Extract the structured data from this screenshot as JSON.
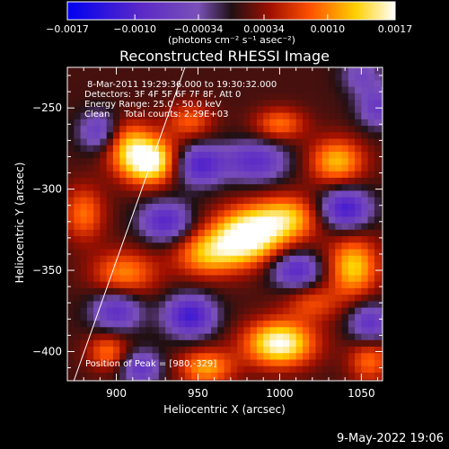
{
  "chart_data": {
    "type": "heatmap",
    "title": "Reconstructed RHESSI Image",
    "xlabel": "Heliocentric X (arcsec)",
    "ylabel": "Heliocentric Y (arcsec)",
    "xlim": [
      870,
      1063
    ],
    "ylim": [
      -418,
      -225
    ],
    "xticks": [
      900,
      950,
      1000,
      1050
    ],
    "yticks": [
      -250,
      -300,
      -350,
      -400
    ],
    "colorbar": {
      "ticks": [
        "-0.0017",
        "-0.0010",
        "-0.00034",
        "0.00034",
        "0.0010",
        "0.0017"
      ],
      "range": [
        -0.0017,
        0.0017
      ],
      "unit_label": "(photons cm⁻² s⁻¹ asec⁻²)"
    },
    "annotations": [
      "8-Mar-2011 19:29:36.000 to 19:30:32.000",
      "Detectors: 3F 4F 5F 6F 7F 8F, Att 0",
      "Energy Range: 25.0 - 50.0 keV",
      "Clean     Total counts: 2.29E+03"
    ],
    "peak_label": "Position of Peak = [980,-329]",
    "peak": {
      "x": 980,
      "y": -329
    },
    "limb": [
      [
        874,
        -418
      ],
      [
        942,
        -225
      ]
    ],
    "sources": [
      {
        "x": 920,
        "y": -283,
        "amp": 0.0017,
        "sx": 13,
        "sy": 10
      },
      {
        "x": 905,
        "y": -270,
        "amp": 0.0008,
        "sx": 12,
        "sy": 10
      },
      {
        "x": 945,
        "y": -258,
        "amp": 0.0007,
        "sx": 10,
        "sy": 8
      },
      {
        "x": 980,
        "y": -329,
        "amp": 0.0017,
        "sx": 15,
        "sy": 12
      },
      {
        "x": 955,
        "y": -340,
        "amp": 0.001,
        "sx": 14,
        "sy": 10
      },
      {
        "x": 1005,
        "y": -318,
        "amp": 0.0011,
        "sx": 14,
        "sy": 10
      },
      {
        "x": 1035,
        "y": -283,
        "amp": 0.0011,
        "sx": 12,
        "sy": 10
      },
      {
        "x": 1000,
        "y": -260,
        "amp": 0.0008,
        "sx": 11,
        "sy": 7
      },
      {
        "x": 880,
        "y": -315,
        "amp": 0.0008,
        "sx": 9,
        "sy": 12
      },
      {
        "x": 905,
        "y": -352,
        "amp": 0.0009,
        "sx": 14,
        "sy": 10
      },
      {
        "x": 1045,
        "y": -348,
        "amp": 0.0012,
        "sx": 11,
        "sy": 13
      },
      {
        "x": 1000,
        "y": -395,
        "amp": 0.0016,
        "sx": 15,
        "sy": 10
      },
      {
        "x": 955,
        "y": -410,
        "amp": 0.001,
        "sx": 12,
        "sy": 8
      },
      {
        "x": 895,
        "y": -400,
        "amp": 0.0008,
        "sx": 9,
        "sy": 8
      },
      {
        "x": 1055,
        "y": -405,
        "amp": 0.0008,
        "sx": 9,
        "sy": 10
      },
      {
        "x": 1020,
        "y": -370,
        "amp": 0.0006,
        "sx": 12,
        "sy": 8
      },
      {
        "x": 890,
        "y": -265,
        "amp": -0.001,
        "sx": 9,
        "sy": 9
      },
      {
        "x": 950,
        "y": -285,
        "amp": -0.0012,
        "sx": 11,
        "sy": 9
      },
      {
        "x": 985,
        "y": -283,
        "amp": -0.001,
        "sx": 14,
        "sy": 9
      },
      {
        "x": 930,
        "y": -320,
        "amp": -0.0011,
        "sx": 11,
        "sy": 9
      },
      {
        "x": 1040,
        "y": -312,
        "amp": -0.0013,
        "sx": 11,
        "sy": 9
      },
      {
        "x": 900,
        "y": -375,
        "amp": -0.001,
        "sx": 11,
        "sy": 9
      },
      {
        "x": 945,
        "y": -378,
        "amp": -0.0013,
        "sx": 11,
        "sy": 9
      },
      {
        "x": 1010,
        "y": -350,
        "amp": -0.0011,
        "sx": 11,
        "sy": 8
      },
      {
        "x": 1055,
        "y": -383,
        "amp": -0.001,
        "sx": 9,
        "sy": 9
      },
      {
        "x": 915,
        "y": -410,
        "amp": -0.0009,
        "sx": 9,
        "sy": 8
      },
      {
        "x": 1060,
        "y": -250,
        "amp": -0.0008,
        "sx": 9,
        "sy": 9
      },
      {
        "x": 1050,
        "y": -230,
        "amp": -0.0006,
        "sx": 9,
        "sy": 8
      }
    ]
  },
  "footer": {
    "timestamp": "9-May-2022 19:06"
  }
}
